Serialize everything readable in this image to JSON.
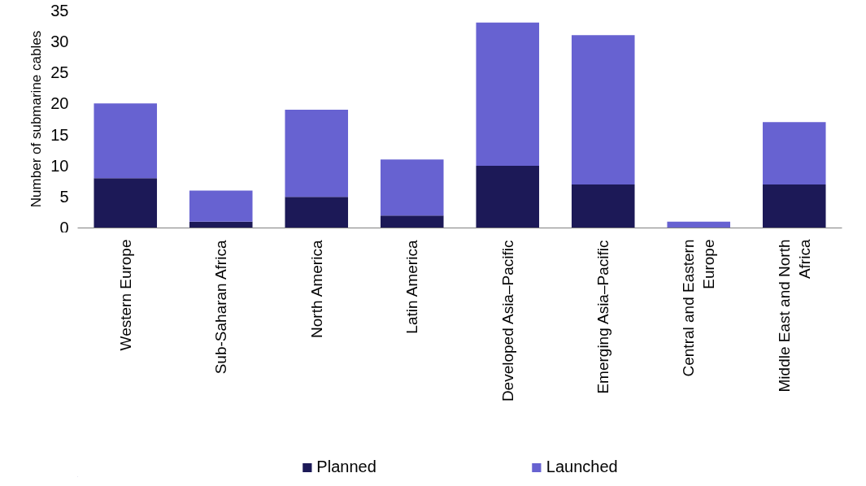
{
  "chart_data": {
    "type": "bar",
    "stacked": true,
    "ylabel": "Number of submarine cables",
    "categories": [
      "Western Europe",
      "Sub-Saharan Africa",
      "North America",
      "Latin America",
      "Developed Asia–Pacific",
      "Emerging Asia–Pacific",
      "Central and Eastern Europe",
      "Middle East and North Africa"
    ],
    "series": [
      {
        "name": "Planned",
        "color": "#1c1957",
        "values": [
          8,
          1,
          5,
          2,
          10,
          7,
          0,
          7
        ]
      },
      {
        "name": "Launched",
        "color": "#6762d1",
        "values": [
          12,
          5,
          14,
          9,
          23,
          24,
          1,
          10
        ]
      }
    ],
    "ylim": [
      0,
      35
    ],
    "yticks": [
      0,
      5,
      10,
      15,
      20,
      25,
      30,
      35
    ],
    "grid": false,
    "legend": "bottom"
  }
}
